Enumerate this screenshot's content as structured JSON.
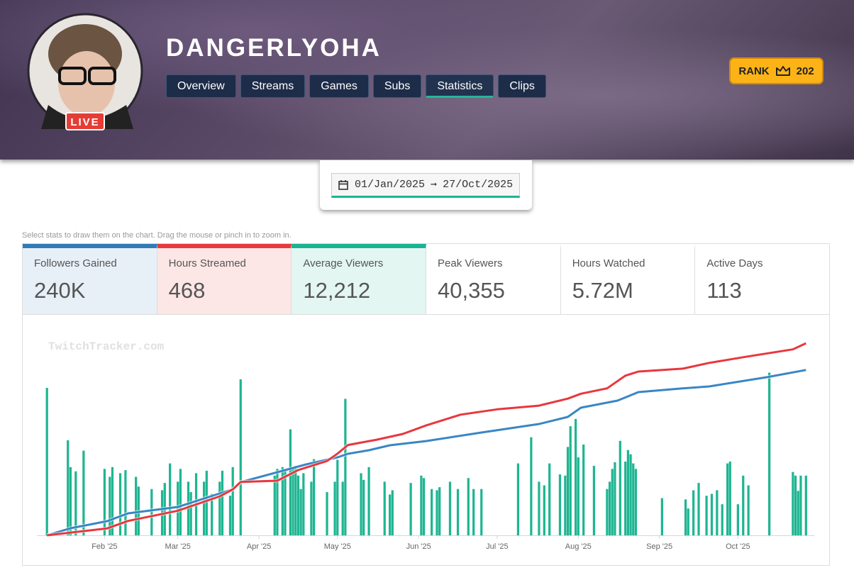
{
  "header": {
    "username": "DANGERLYOHA",
    "live_badge": "LIVE",
    "tabs": [
      "Overview",
      "Streams",
      "Games",
      "Subs",
      "Statistics",
      "Clips"
    ],
    "active_tab": 4,
    "rank_label": "RANK",
    "rank": 202
  },
  "date_range": {
    "start": "01/Jan/2025",
    "end": "27/Oct/2025"
  },
  "hint": "Select stats to draw them on the chart. Drag the mouse or pinch in to zoom in.",
  "stats": [
    {
      "label": "Followers Gained",
      "value": "240K",
      "color": "#337ab7",
      "background": "#e7f0f7"
    },
    {
      "label": "Hours Streamed",
      "value": "468",
      "color": "#e8393f",
      "background": "#fde6e6"
    },
    {
      "label": "Average Viewers",
      "value": "12,212",
      "color": "#1bb394",
      "background": "#e3f6f1"
    },
    {
      "label": "Peak Viewers",
      "value": "40,355"
    },
    {
      "label": "Hours Watched",
      "value": "5.72M"
    },
    {
      "label": "Active Days",
      "value": "113"
    }
  ],
  "chart_data": {
    "type": "bar",
    "watermark": "TwitchTracker.com",
    "xlim": [
      1,
      301
    ],
    "xticks": [
      {
        "value": 32,
        "label": "Feb '25"
      },
      {
        "value": 60,
        "label": "Mar '25"
      },
      {
        "value": 91,
        "label": "Apr '25"
      },
      {
        "value": 121,
        "label": "May '25"
      },
      {
        "value": 152,
        "label": "Jun '25"
      },
      {
        "value": 182,
        "label": "Jul '25"
      },
      {
        "value": 213,
        "label": "Aug '25"
      },
      {
        "value": 244,
        "label": "Sep '25"
      },
      {
        "value": 274,
        "label": "Oct '25"
      }
    ],
    "series": [
      {
        "type": "bar",
        "color": "#1fb592",
        "ylim": [
          0,
          32000
        ],
        "x": [
          10,
          18,
          19,
          21,
          24,
          32,
          34,
          35,
          38,
          40,
          44,
          45,
          50,
          54,
          55,
          57,
          60,
          61,
          64,
          65,
          67,
          70,
          71,
          73,
          76,
          77,
          80,
          81,
          84,
          97,
          98,
          100,
          101,
          103,
          104,
          105,
          106,
          107,
          108,
          111,
          112,
          117,
          120,
          121,
          123,
          124,
          130,
          131,
          133,
          139,
          141,
          142,
          149,
          153,
          154,
          157,
          159,
          160,
          164,
          167,
          171,
          173,
          176,
          190,
          195,
          198,
          200,
          202,
          206,
          208,
          209,
          210,
          212,
          213,
          215,
          219,
          224,
          225,
          226,
          227,
          229,
          231,
          232,
          233,
          234,
          235,
          245,
          254,
          255,
          257,
          259,
          262,
          264,
          266,
          268,
          270,
          271,
          274,
          276,
          278,
          286,
          295,
          296,
          297,
          298,
          300
        ],
        "values": [
          24200,
          15600,
          11200,
          10500,
          13900,
          10900,
          9600,
          11200,
          10200,
          10700,
          9600,
          8000,
          7600,
          7400,
          8600,
          11800,
          8800,
          10900,
          8800,
          7100,
          10200,
          8800,
          10600,
          6800,
          8800,
          10600,
          6500,
          11200,
          25600,
          9800,
          10900,
          11200,
          10900,
          17400,
          10900,
          11400,
          9800,
          7600,
          10200,
          8800,
          12500,
          7100,
          8800,
          12400,
          8800,
          22400,
          10200,
          9100,
          11200,
          8800,
          6700,
          7400,
          8600,
          9800,
          9400,
          7600,
          7400,
          7900,
          8800,
          7600,
          9400,
          7600,
          7600,
          11800,
          16100,
          8800,
          8200,
          11800,
          10000,
          9800,
          14500,
          17900,
          19100,
          12800,
          14900,
          11400,
          7600,
          8800,
          10900,
          12000,
          15500,
          12100,
          14000,
          13300,
          11800,
          10900,
          6100,
          5900,
          4400,
          7400,
          8600,
          6500,
          6800,
          7400,
          5100,
          11800,
          12100,
          5100,
          9800,
          8200,
          26700,
          10400,
          9800,
          7300,
          9800,
          9800
        ]
      },
      {
        "type": "line",
        "color": "#3a86c4",
        "ylim": [
          0,
          283000
        ],
        "x": [
          10,
          19,
          33,
          41,
          60,
          81,
          84,
          109,
          121,
          125,
          133,
          141,
          155,
          176,
          198,
          209,
          214,
          228,
          236,
          252,
          263,
          285,
          300
        ],
        "values": [
          0,
          10300,
          20600,
          31900,
          41200,
          66900,
          77200,
          102900,
          113200,
          118300,
          123500,
          130700,
          136900,
          149200,
          161600,
          171900,
          185200,
          195500,
          207900,
          213000,
          216100,
          229500,
          240000
        ]
      },
      {
        "type": "line",
        "color": "#e8373e",
        "ylim": [
          0,
          475
        ],
        "x": [
          10,
          33,
          41,
          60,
          76,
          81,
          84,
          98,
          106,
          117,
          121,
          125,
          136,
          146,
          155,
          168,
          182,
          198,
          209,
          214,
          224,
          231,
          236,
          253,
          263,
          277,
          295,
          300
        ],
        "values": [
          0,
          17,
          35,
          60,
          95,
          112,
          130,
          133,
          159,
          181,
          199,
          220,
          233,
          247,
          268,
          294,
          307,
          316,
          333,
          345,
          358,
          389,
          399,
          406,
          420,
          435,
          453,
          468
        ]
      }
    ]
  }
}
